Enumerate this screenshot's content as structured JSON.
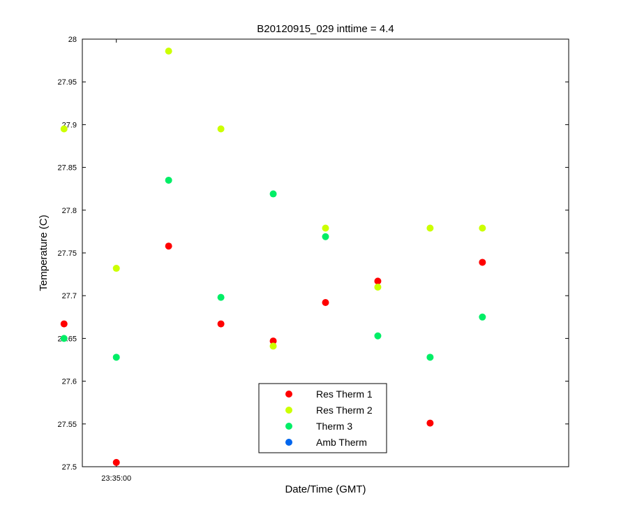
{
  "chart_data": {
    "type": "scatter",
    "title": "B20120915_029 inttime = 4.4",
    "xlabel": "Date/Time (GMT)",
    "ylabel": "Temperature (C)",
    "x_ticks": [
      {
        "x": 1,
        "label": "23:35:00"
      }
    ],
    "xlim": [
      0.35,
      9.65
    ],
    "ylim": [
      27.5,
      28.0
    ],
    "y_ticks": [
      27.5,
      27.55,
      27.6,
      27.65,
      27.7,
      27.75,
      27.8,
      27.85,
      27.9,
      27.95,
      28
    ],
    "y_tick_labels": [
      "27.5",
      "27.55",
      "27.6",
      "27.65",
      "27.7",
      "27.75",
      "27.8",
      "27.85",
      "27.9",
      "27.95",
      "28"
    ],
    "grid": false,
    "legend_position": "bottom-center",
    "x": [
      0,
      1,
      2,
      3,
      4,
      5,
      6,
      7,
      8,
      9
    ],
    "series": [
      {
        "name": "Res Therm 1",
        "color": "#ff0000",
        "values": [
          27.667,
          27.505,
          27.758,
          27.667,
          27.647,
          27.692,
          27.717,
          27.551,
          27.739,
          null
        ]
      },
      {
        "name": "Res Therm 2",
        "color": "#ccff00",
        "values": [
          27.895,
          27.732,
          27.986,
          27.895,
          27.641,
          27.779,
          27.71,
          27.779,
          27.779,
          null
        ]
      },
      {
        "name": "Therm 3",
        "color": "#00ee66",
        "values": [
          27.65,
          27.628,
          27.835,
          27.698,
          27.819,
          27.769,
          27.653,
          27.628,
          27.675,
          null
        ]
      },
      {
        "name": "Amb Therm",
        "color": "#0066ee",
        "values": [
          null,
          null,
          null,
          null,
          null,
          null,
          null,
          null,
          null,
          null
        ]
      }
    ]
  }
}
